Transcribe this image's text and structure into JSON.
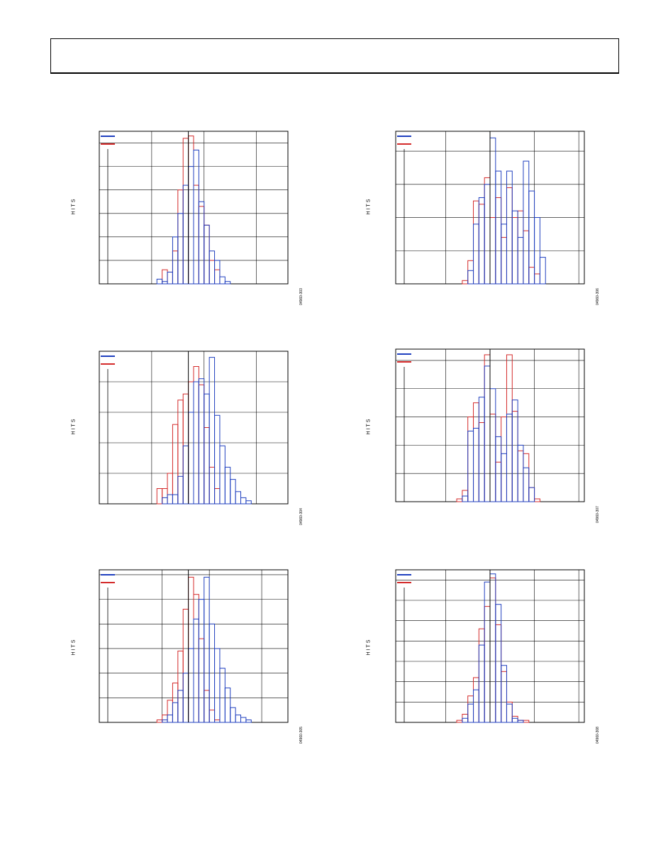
{
  "page": {
    "header": ""
  },
  "charts": [
    {
      "id": "hist-top-left",
      "ylabel": "HITS",
      "fig_id": "04960-303",
      "legend_colors": [
        "#1f3fbf",
        "#d42a2a"
      ],
      "chart_data": {
        "type": "bar",
        "xlim": [
          0,
          36
        ],
        "ylim": [
          0,
          65
        ],
        "x_grid": [
          10,
          20,
          30
        ],
        "y_grid": [
          10,
          20,
          30,
          40,
          50,
          60
        ],
        "marker_x": 17,
        "series": [
          {
            "color": "#1f3fbf",
            "start": 11,
            "values": [
              2,
              1,
              5,
              20,
              30,
              42,
              50,
              57,
              35,
              25,
              14,
              10,
              3,
              1
            ]
          },
          {
            "color": "#d42a2a",
            "start": 12,
            "values": [
              6,
              5,
              14,
              40,
              62,
              63,
              42,
              33,
              25,
              10,
              6
            ]
          }
        ]
      }
    },
    {
      "id": "hist-top-right",
      "ylabel": "HITS",
      "fig_id": "04960-306",
      "legend_colors": [
        "#1f3fbf",
        "#d42a2a"
      ],
      "chart_data": {
        "type": "bar",
        "xlim": [
          0,
          34
        ],
        "ylim": [
          0,
          46
        ],
        "x_grid": [
          9,
          25,
          33
        ],
        "y_grid": [
          10,
          20,
          30,
          40
        ],
        "marker_x": 17,
        "series": [
          {
            "color": "#1f3fbf",
            "start": 13,
            "values": [
              4,
              18,
              26,
              30,
              44,
              34,
              18,
              34,
              22,
              14,
              37,
              28,
              20,
              8
            ]
          },
          {
            "color": "#d42a2a",
            "start": 12,
            "values": [
              1,
              7,
              25,
              24,
              32,
              20,
              26,
              14,
              29,
              20,
              22,
              16,
              5,
              3
            ]
          }
        ]
      }
    },
    {
      "id": "hist-mid-left",
      "ylabel": "HITS",
      "fig_id": "04960-304",
      "legend_colors": [
        "#1f3fbf",
        "#d42a2a"
      ],
      "chart_data": {
        "type": "bar",
        "xlim": [
          0,
          36
        ],
        "ylim": [
          0,
          50
        ],
        "x_grid": [
          10,
          20,
          30
        ],
        "y_grid": [
          10,
          20,
          30,
          40
        ],
        "marker_x": 17,
        "series": [
          {
            "color": "#1f3fbf",
            "start": 12,
            "values": [
              2,
              3,
              3,
              9,
              19,
              30,
              40,
              41,
              36,
              48,
              29,
              19,
              12,
              8,
              4,
              2,
              1
            ]
          },
          {
            "color": "#d42a2a",
            "start": 11,
            "values": [
              5,
              5,
              10,
              26,
              34,
              36,
              40,
              45,
              39,
              25,
              12,
              5
            ]
          }
        ]
      }
    },
    {
      "id": "hist-mid-right",
      "ylabel": "HITS",
      "fig_id": "04960-307",
      "legend_colors": [
        "#1f3fbf",
        "#d42a2a"
      ],
      "chart_data": {
        "type": "bar",
        "xlim": [
          0,
          34
        ],
        "ylim": [
          0,
          54
        ],
        "x_grid": [
          9,
          25,
          33
        ],
        "y_grid": [
          10,
          20,
          30,
          40,
          50
        ],
        "marker_x": 17,
        "series": [
          {
            "color": "#1f3fbf",
            "start": 12,
            "values": [
              2,
              25,
              26,
              37,
              48,
              40,
              23,
              17,
              31,
              36,
              20,
              12,
              5
            ]
          },
          {
            "color": "#d42a2a",
            "start": 11,
            "values": [
              1,
              4,
              30,
              35,
              28,
              52,
              31,
              14,
              30,
              52,
              32,
              18,
              17,
              5,
              1
            ]
          }
        ]
      }
    },
    {
      "id": "hist-bottom-left",
      "ylabel": "HITS",
      "fig_id": "04960-305",
      "legend_colors": [
        "#1f3fbf",
        "#d42a2a"
      ],
      "chart_data": {
        "type": "bar",
        "xlim": [
          0,
          36
        ],
        "ylim": [
          0,
          62
        ],
        "x_grid": [
          12,
          21,
          31
        ],
        "y_grid": [
          10,
          20,
          30,
          40,
          50,
          60
        ],
        "marker_x": 17,
        "series": [
          {
            "color": "#1f3fbf",
            "start": 12,
            "values": [
              1,
              3,
              8,
              13,
              20,
              30,
              42,
              50,
              59,
              40,
              30,
              22,
              14,
              6,
              3,
              2,
              1
            ]
          },
          {
            "color": "#d42a2a",
            "start": 11,
            "values": [
              1,
              3,
              9,
              16,
              29,
              46,
              59,
              52,
              34,
              13,
              5,
              1
            ]
          }
        ]
      }
    },
    {
      "id": "hist-bottom-right",
      "ylabel": "HITS",
      "fig_id": "04960-308",
      "legend_colors": [
        "#1f3fbf",
        "#d42a2a"
      ],
      "chart_data": {
        "type": "bar",
        "xlim": [
          0,
          34
        ],
        "ylim": [
          0,
          75
        ],
        "x_grid": [
          9,
          25,
          33
        ],
        "y_grid": [
          10,
          20,
          30,
          40,
          50,
          60,
          70
        ],
        "marker_x": 17,
        "series": [
          {
            "color": "#1f3fbf",
            "start": 12,
            "values": [
              2,
              9,
              16,
              38,
              69,
              73,
              58,
              28,
              9,
              2,
              1
            ]
          },
          {
            "color": "#d42a2a",
            "start": 11,
            "values": [
              1,
              4,
              13,
              22,
              46,
              57,
              71,
              48,
              25,
              10,
              3,
              1,
              1
            ]
          }
        ]
      }
    }
  ]
}
